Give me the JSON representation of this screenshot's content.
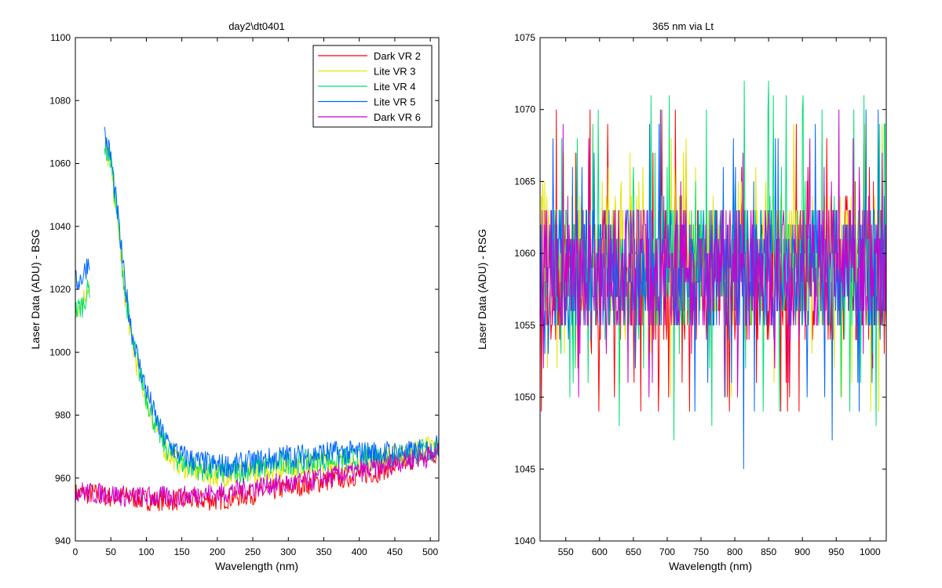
{
  "chart_data": [
    {
      "type": "line",
      "title": "day2\\dt0401",
      "xlabel": "Wavelength (nm)",
      "ylabel": "Laser Data (ADU) - BSG",
      "xlim": [
        0,
        512
      ],
      "ylim": [
        940,
        1100
      ],
      "xticks": [
        0,
        50,
        100,
        150,
        200,
        250,
        300,
        350,
        400,
        450,
        500
      ],
      "yticks": [
        940,
        960,
        980,
        1000,
        1020,
        1040,
        1060,
        1080,
        1100
      ],
      "legend_position": "top-right",
      "grid": false,
      "series": [
        {
          "name": "Dark VR 2",
          "color": "#ff0000",
          "x": [
            0,
            25,
            50,
            75,
            100,
            125,
            150,
            175,
            200,
            225,
            250,
            275,
            300,
            325,
            350,
            375,
            400,
            425,
            450,
            475,
            500,
            512
          ],
          "y": [
            955,
            955,
            954,
            954,
            953,
            953,
            953,
            953,
            953,
            954,
            955,
            956,
            957,
            958,
            959,
            960,
            961,
            962,
            964,
            966,
            967,
            968
          ]
        },
        {
          "name": "Lite VR 3",
          "color": "#e6e600",
          "x": [
            0,
            10,
            20,
            30,
            40,
            50,
            60,
            70,
            80,
            90,
            100,
            110,
            120,
            130,
            140,
            150,
            175,
            200,
            225,
            250,
            275,
            300,
            325,
            350,
            375,
            400,
            425,
            450,
            475,
            500,
            512
          ],
          "y": [
            1014,
            1016,
            1022,
            null,
            1065,
            1060,
            1040,
            1018,
            1003,
            992,
            985,
            978,
            972,
            968,
            966,
            964,
            962,
            961,
            961,
            962,
            963,
            964,
            964,
            965,
            965,
            966,
            966,
            967,
            968,
            970,
            970
          ]
        },
        {
          "name": "Lite VR 4",
          "color": "#00e070",
          "x": [
            0,
            10,
            20,
            30,
            40,
            50,
            60,
            70,
            80,
            90,
            100,
            110,
            120,
            130,
            140,
            150,
            175,
            200,
            225,
            250,
            275,
            300,
            325,
            350,
            375,
            400,
            425,
            450,
            475,
            500,
            512
          ],
          "y": [
            1013,
            1015,
            1021,
            null,
            1066,
            1061,
            1041,
            1019,
            1004,
            994,
            986,
            979,
            973,
            969,
            967,
            965,
            963,
            962,
            962,
            963,
            964,
            965,
            965,
            966,
            966,
            966,
            967,
            967,
            968,
            969,
            970
          ]
        },
        {
          "name": "Lite VR 5",
          "color": "#0066ff",
          "x": [
            0,
            10,
            20,
            30,
            40,
            50,
            60,
            70,
            80,
            90,
            100,
            110,
            120,
            130,
            140,
            150,
            175,
            200,
            225,
            250,
            275,
            300,
            325,
            350,
            375,
            400,
            425,
            450,
            475,
            500,
            512
          ],
          "y": [
            1022,
            1024,
            1030,
            null,
            1070,
            1062,
            1043,
            1021,
            1006,
            996,
            988,
            981,
            975,
            971,
            969,
            967,
            965,
            964,
            964,
            965,
            966,
            967,
            967,
            968,
            968,
            968,
            968,
            968,
            968,
            969,
            970
          ]
        },
        {
          "name": "Dark VR 6",
          "color": "#cc00cc",
          "x": [
            0,
            25,
            50,
            75,
            100,
            125,
            150,
            175,
            200,
            225,
            250,
            275,
            300,
            325,
            350,
            375,
            400,
            425,
            450,
            475,
            500,
            512
          ],
          "y": [
            956,
            955,
            955,
            954,
            954,
            954,
            954,
            955,
            955,
            956,
            957,
            958,
            958,
            959,
            960,
            961,
            962,
            963,
            965,
            966,
            967,
            968
          ]
        }
      ]
    },
    {
      "type": "line",
      "title": "365 nm via Lt",
      "xlabel": "Wavelength (nm)",
      "ylabel": "Laser Data (ADU) - RSG",
      "xlim": [
        512,
        1024
      ],
      "ylim": [
        1040,
        1075
      ],
      "xticks": [
        550,
        600,
        650,
        700,
        750,
        800,
        850,
        900,
        950,
        1000
      ],
      "yticks": [
        1040,
        1045,
        1050,
        1055,
        1060,
        1065,
        1070,
        1075
      ],
      "grid": false,
      "series": [
        {
          "color": "#ff0000",
          "x": [
            512,
            1024
          ],
          "y": [
            1058.5,
            1058.5
          ],
          "range": [
            1048,
            1070
          ]
        },
        {
          "color": "#e6e600",
          "x": [
            512,
            1024
          ],
          "y": [
            1059.5,
            1059.5
          ],
          "range": [
            1049,
            1069
          ]
        },
        {
          "color": "#00e070",
          "x": [
            512,
            1024
          ],
          "y": [
            1059,
            1059
          ],
          "range": [
            1047,
            1073
          ]
        },
        {
          "color": "#0066ff",
          "x": [
            512,
            1024
          ],
          "y": [
            1059,
            1059
          ],
          "range": [
            1045,
            1071
          ]
        },
        {
          "color": "#cc00cc",
          "x": [
            512,
            1024
          ],
          "y": [
            1059,
            1059
          ],
          "range": [
            1049,
            1070
          ]
        }
      ]
    }
  ]
}
